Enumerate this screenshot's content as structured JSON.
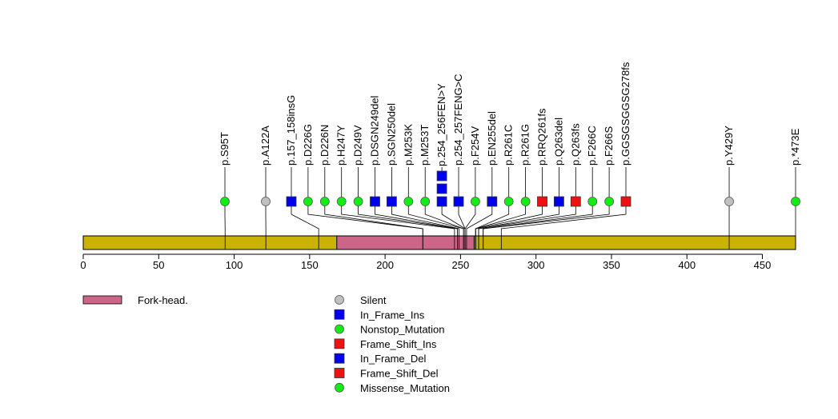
{
  "chart_data": {
    "type": "lollipop",
    "protein_length": 472,
    "axis": {
      "ticks": [
        0,
        50,
        100,
        150,
        200,
        250,
        300,
        350,
        400,
        450
      ],
      "range": [
        0,
        472
      ]
    },
    "domains": [
      {
        "name": "Fork-head.",
        "start": 168,
        "end": 259,
        "color": "#cc6688"
      }
    ],
    "colors": {
      "backbone": "#c9b200",
      "domain": "#cc6688",
      "silent": "#c0c0c0",
      "missense": "#11ee11",
      "in_frame": "#0000ee",
      "frame_shift": "#ee1111"
    },
    "mutations": [
      {
        "label": "p.S95T",
        "pos": 94,
        "type": "Missense_Mutation",
        "count": 1
      },
      {
        "label": "p.A122A",
        "pos": 121,
        "type": "Silent",
        "count": 1
      },
      {
        "label": "p.157_158insG",
        "pos": 156,
        "type": "In_Frame_Ins",
        "count": 1
      },
      {
        "label": "p.D226G",
        "pos": 225,
        "type": "Missense_Mutation",
        "count": 1
      },
      {
        "label": "p.D226N",
        "pos": 225,
        "type": "Missense_Mutation",
        "count": 1
      },
      {
        "label": "p.H247Y",
        "pos": 246,
        "type": "Missense_Mutation",
        "count": 1
      },
      {
        "label": "p.D249V",
        "pos": 248,
        "type": "Missense_Mutation",
        "count": 1
      },
      {
        "label": "p.DSGN249del",
        "pos": 248,
        "type": "In_Frame_Del",
        "count": 1
      },
      {
        "label": "p.SGN250del",
        "pos": 249,
        "type": "In_Frame_Del",
        "count": 1
      },
      {
        "label": "p.M253K",
        "pos": 252,
        "type": "Missense_Mutation",
        "count": 1
      },
      {
        "label": "p.M253T",
        "pos": 252,
        "type": "Missense_Mutation",
        "count": 1
      },
      {
        "label": "p.254_256FEN>Y",
        "pos": 253,
        "type": "In_Frame_Del",
        "count": 3
      },
      {
        "label": "p.254_257FENG>C",
        "pos": 253,
        "type": "In_Frame_Del",
        "count": 1
      },
      {
        "label": "p.F254V",
        "pos": 253,
        "type": "Missense_Mutation",
        "count": 1
      },
      {
        "label": "p.EN255del",
        "pos": 254,
        "type": "In_Frame_Del",
        "count": 1
      },
      {
        "label": "p.R261C",
        "pos": 260,
        "type": "Missense_Mutation",
        "count": 1
      },
      {
        "label": "p.R261G",
        "pos": 260,
        "type": "Missense_Mutation",
        "count": 1
      },
      {
        "label": "p.RRQ261fs",
        "pos": 260,
        "type": "Frame_Shift_Del",
        "count": 1
      },
      {
        "label": "p.Q263del",
        "pos": 262,
        "type": "In_Frame_Del",
        "count": 1
      },
      {
        "label": "p.Q263fs",
        "pos": 262,
        "type": "Frame_Shift_Del",
        "count": 1
      },
      {
        "label": "p.F266C",
        "pos": 265,
        "type": "Missense_Mutation",
        "count": 1
      },
      {
        "label": "p.F266S",
        "pos": 265,
        "type": "Missense_Mutation",
        "count": 1
      },
      {
        "label": "p.GGSGSGGSG278fs",
        "pos": 277,
        "type": "Frame_Shift_Del",
        "count": 1
      },
      {
        "label": "p.Y429Y",
        "pos": 428,
        "type": "Silent",
        "count": 1
      },
      {
        "label": "p.*473E",
        "pos": 472,
        "type": "Nonstop_Mutation",
        "count": 1
      }
    ],
    "legend_domains": [
      {
        "label": "Fork-head.",
        "color": "#cc6688"
      }
    ],
    "legend_types": [
      {
        "label": "Silent",
        "shape": "circle",
        "color": "#c0c0c0"
      },
      {
        "label": "In_Frame_Ins",
        "shape": "square",
        "color": "#0000ee"
      },
      {
        "label": "Nonstop_Mutation",
        "shape": "circle",
        "color": "#11ee11"
      },
      {
        "label": "Frame_Shift_Ins",
        "shape": "square",
        "color": "#ee1111"
      },
      {
        "label": "In_Frame_Del",
        "shape": "square",
        "color": "#0000ee"
      },
      {
        "label": "Frame_Shift_Del",
        "shape": "square",
        "color": "#ee1111"
      },
      {
        "label": "Missense_Mutation",
        "shape": "circle",
        "color": "#11ee11"
      }
    ]
  }
}
